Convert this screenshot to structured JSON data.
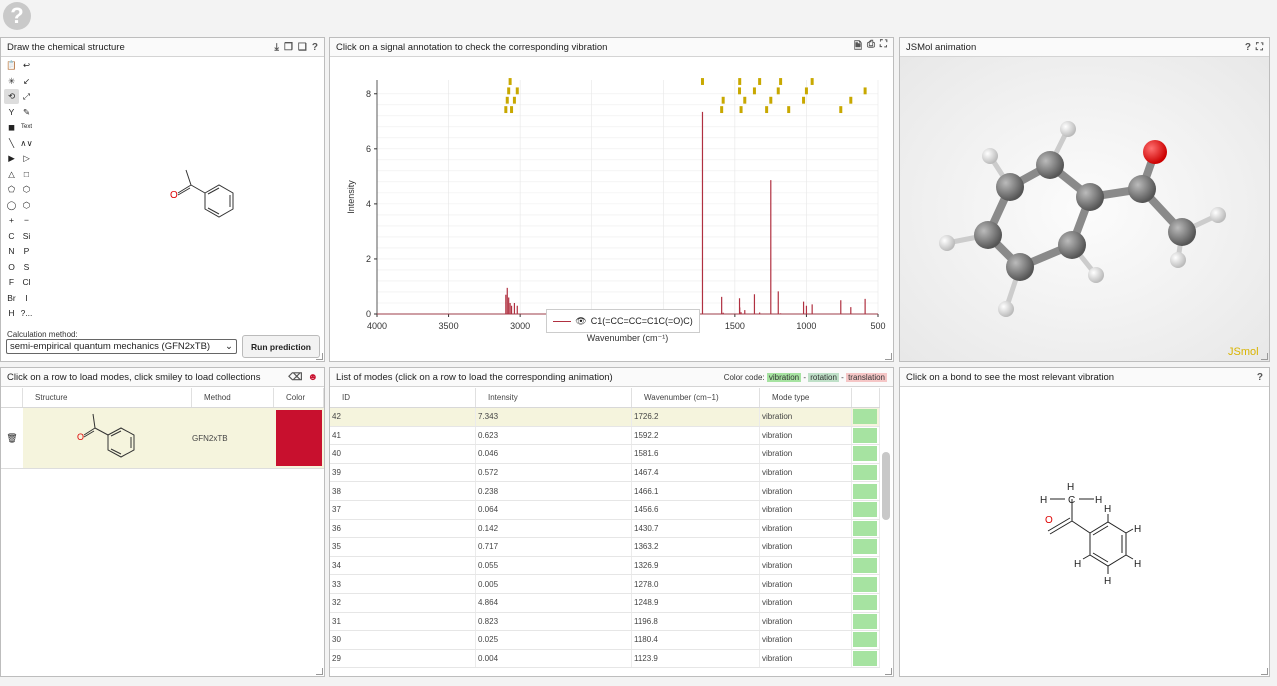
{
  "help_icon": "question-mark-circle-icon",
  "editor": {
    "title": "Draw the chemical structure",
    "toolbar_rows": [
      [
        "📋",
        "↩"
      ],
      [
        "✳",
        "↙"
      ],
      [
        "⟲",
        "⤢"
      ],
      [
        "Y",
        "✎"
      ],
      [
        "◼",
        "Text"
      ],
      [
        "╲",
        "∧∨"
      ],
      [
        "▶",
        "▷"
      ],
      [
        "△",
        "□"
      ],
      [
        "⬠",
        "⬡"
      ],
      [
        "◯",
        "⬡"
      ],
      [
        "+",
        "−"
      ],
      [
        "C",
        "Si"
      ],
      [
        "N",
        "P"
      ],
      [
        "O",
        "S"
      ],
      [
        "F",
        "Cl"
      ],
      [
        "Br",
        "I"
      ],
      [
        "H",
        "?..."
      ]
    ],
    "calc_label": "Calculation method:",
    "calc_value": "semi-empirical quantum mechanics (GFN2xTB)",
    "run_label": "Run prediction",
    "atom_O": "O"
  },
  "spectrum": {
    "title": "Click on a signal annotation to check the corresponding vibration",
    "legend_label": "C1(=CC=CC=C1C(=O)C)"
  },
  "chart_data": {
    "type": "bar",
    "xlabel": "Wavenumber (cm⁻¹)",
    "ylabel": "Intensity",
    "xlim": [
      4000,
      500
    ],
    "ylim": [
      0,
      8.5
    ],
    "xticks": [
      4000,
      3500,
      3000,
      2500,
      2000,
      1500,
      1000,
      500
    ],
    "yticks": [
      0,
      2,
      4,
      6,
      8
    ],
    "series": [
      {
        "name": "C1(=CC=CC=C1C(=O)C)",
        "color": "#b03040",
        "x": [
          3100,
          3090,
          3080,
          3070,
          3060,
          3040,
          3020,
          1726.2,
          1592.2,
          1581.6,
          1467.4,
          1466.1,
          1456.6,
          1430.7,
          1363.2,
          1326.9,
          1278.0,
          1248.9,
          1196.8,
          1180.4,
          1123.9,
          1020,
          1000,
          960,
          760,
          690,
          590
        ],
        "values": [
          0.7,
          0.95,
          0.6,
          0.4,
          0.3,
          0.4,
          0.3,
          7.343,
          0.623,
          0.046,
          0.572,
          0.238,
          0.064,
          0.142,
          0.717,
          0.055,
          0.005,
          4.864,
          0.823,
          0.025,
          0.004,
          0.45,
          0.3,
          0.35,
          0.5,
          0.25,
          0.55
        ]
      }
    ],
    "annotation_color": "#c8a800"
  },
  "jsmol": {
    "title": "JSMol animation",
    "watermark": "JSmol"
  },
  "collections": {
    "title": "Click on a row to load modes, click smiley to load collections",
    "columns": [
      "Structure",
      "Method",
      "Color"
    ],
    "row": {
      "method": "GFN2xTB",
      "color": "#c8102e"
    }
  },
  "modes": {
    "title": "List of modes (click on a row to load the corresponding animation)",
    "color_code_label": "Color code:",
    "vibration_label": "vibration",
    "rotation_label": "rotation",
    "translation_label": "translation",
    "sep1": "-",
    "sep2": "-",
    "columns": [
      "ID",
      "Intensity",
      "Wavenumber (cm−1)",
      "Mode type"
    ],
    "rows": [
      {
        "id": "42",
        "intensity": "7.343",
        "wavenumber": "1726.2",
        "type": "vibration"
      },
      {
        "id": "41",
        "intensity": "0.623",
        "wavenumber": "1592.2",
        "type": "vibration"
      },
      {
        "id": "40",
        "intensity": "0.046",
        "wavenumber": "1581.6",
        "type": "vibration"
      },
      {
        "id": "39",
        "intensity": "0.572",
        "wavenumber": "1467.4",
        "type": "vibration"
      },
      {
        "id": "38",
        "intensity": "0.238",
        "wavenumber": "1466.1",
        "type": "vibration"
      },
      {
        "id": "37",
        "intensity": "0.064",
        "wavenumber": "1456.6",
        "type": "vibration"
      },
      {
        "id": "36",
        "intensity": "0.142",
        "wavenumber": "1430.7",
        "type": "vibration"
      },
      {
        "id": "35",
        "intensity": "0.717",
        "wavenumber": "1363.2",
        "type": "vibration"
      },
      {
        "id": "34",
        "intensity": "0.055",
        "wavenumber": "1326.9",
        "type": "vibration"
      },
      {
        "id": "33",
        "intensity": "0.005",
        "wavenumber": "1278.0",
        "type": "vibration"
      },
      {
        "id": "32",
        "intensity": "4.864",
        "wavenumber": "1248.9",
        "type": "vibration"
      },
      {
        "id": "31",
        "intensity": "0.823",
        "wavenumber": "1196.8",
        "type": "vibration"
      },
      {
        "id": "30",
        "intensity": "0.025",
        "wavenumber": "1180.4",
        "type": "vibration"
      },
      {
        "id": "29",
        "intensity": "0.004",
        "wavenumber": "1123.9",
        "type": "vibration"
      }
    ]
  },
  "bond": {
    "title": "Click on a bond to see the most relevant vibration",
    "atom_C": "C",
    "atom_H": "H",
    "atom_O": "O"
  },
  "colors": {
    "vibration": "#a6e3a1",
    "rotation": "#bfe0c8",
    "translation": "#f5c6c6",
    "selected": "#f5f4dd"
  }
}
